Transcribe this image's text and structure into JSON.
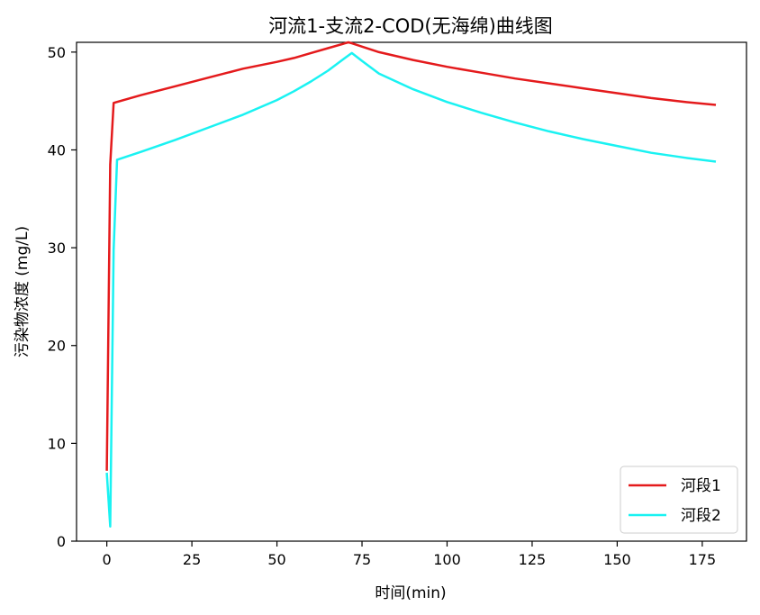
{
  "chart_data": {
    "type": "line",
    "title": "河流1-支流2-COD(无海绵)曲线图",
    "xlabel": "时间(min)",
    "ylabel": "污染物浓度 (mg/L)",
    "xlim": [
      -8.9,
      188
    ],
    "ylim": [
      0,
      51
    ],
    "xticks": [
      0,
      25,
      50,
      75,
      100,
      125,
      150,
      175
    ],
    "yticks": [
      0,
      10,
      20,
      30,
      40,
      50
    ],
    "grid": false,
    "legend_position": "lower-right",
    "series": [
      {
        "name": "河段1",
        "color": "#e41a1c",
        "x": [
          0,
          1,
          2,
          10,
          20,
          30,
          40,
          50,
          55,
          60,
          65,
          70,
          71,
          72,
          80,
          90,
          100,
          110,
          120,
          130,
          140,
          150,
          160,
          170,
          179
        ],
        "y": [
          7.2,
          38.5,
          44.8,
          45.6,
          46.5,
          47.4,
          48.3,
          49.0,
          49.4,
          49.9,
          50.4,
          50.9,
          51.0,
          50.9,
          50.0,
          49.2,
          48.5,
          47.9,
          47.3,
          46.8,
          46.3,
          45.8,
          45.3,
          44.9,
          44.6
        ]
      },
      {
        "name": "河段2",
        "color": "#1af2f2",
        "x": [
          0,
          1,
          2,
          3,
          10,
          20,
          30,
          40,
          50,
          55,
          60,
          65,
          70,
          72,
          75,
          80,
          90,
          100,
          110,
          120,
          130,
          140,
          150,
          160,
          170,
          179
        ],
        "y": [
          7.0,
          1.5,
          29.8,
          39.0,
          39.8,
          41.0,
          42.3,
          43.6,
          45.1,
          46.0,
          47.0,
          48.1,
          49.4,
          49.9,
          49.1,
          47.8,
          46.2,
          44.9,
          43.8,
          42.8,
          41.9,
          41.1,
          40.4,
          39.7,
          39.2,
          38.8
        ]
      }
    ]
  }
}
